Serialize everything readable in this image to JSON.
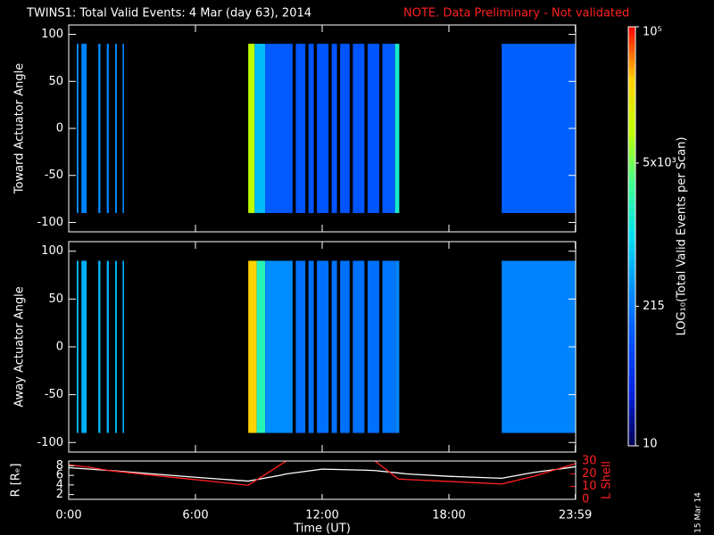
{
  "header": {
    "title": "TWINS1: Total Valid Events:  4 Mar (day  63), 2014",
    "note": "NOTE. Data Preliminary - Not validated"
  },
  "stamp": "15 Mar 14",
  "colorbar": {
    "label": "LOG₁₀(Total Valid Events per Scan)",
    "lim": [
      10,
      100000
    ],
    "log": true,
    "ticks": [
      10,
      215,
      {
        "value": 5000,
        "label": "5x10³"
      },
      {
        "value": 100000,
        "label": "10⁵"
      }
    ],
    "colormap": [
      "#000050",
      "#0020e0",
      "#0050ff",
      "#0090ff",
      "#00e0f0",
      "#40ff90",
      "#c0ff00",
      "#ffd000",
      "#ff0000"
    ]
  },
  "chart_data": [
    {
      "type": "heatmap",
      "ylabel": "Toward Actuator Angle",
      "xlim": [
        0,
        24
      ],
      "xticks": [
        0,
        6,
        12,
        18,
        23.983
      ],
      "ylim": [
        -110,
        110
      ],
      "yticks": [
        100,
        50,
        0,
        -50,
        -100
      ],
      "y_extent": [
        -90,
        90
      ],
      "x_start": [
        0.38,
        0.6,
        1.4,
        1.8,
        2.2,
        2.55,
        8.5,
        8.8,
        9.3,
        10.75,
        11.35,
        11.75,
        12.45,
        12.85,
        13.45,
        14.15,
        14.85,
        15.45,
        20.5
      ],
      "x_end": [
        0.46,
        0.85,
        1.5,
        1.9,
        2.28,
        2.62,
        8.8,
        9.3,
        10.6,
        11.2,
        11.6,
        12.3,
        12.7,
        13.3,
        14.0,
        14.7,
        15.45,
        15.65,
        24
      ],
      "values": [
        300,
        250,
        300,
        250,
        300,
        250,
        10000,
        600,
        120,
        110,
        110,
        110,
        110,
        110,
        110,
        110,
        120,
        1500,
        130
      ]
    },
    {
      "type": "heatmap",
      "ylabel": "Away Actuator Angle",
      "xlim": [
        0,
        24
      ],
      "xticks": [
        0,
        6,
        12,
        18,
        23.983
      ],
      "ylim": [
        -110,
        110
      ],
      "yticks": [
        100,
        50,
        0,
        -50,
        -100
      ],
      "y_extent": [
        -90,
        90
      ],
      "x_start": [
        0.38,
        0.6,
        1.4,
        1.8,
        2.2,
        2.55,
        8.5,
        8.9,
        9.3,
        10.75,
        11.35,
        11.75,
        12.45,
        12.85,
        13.45,
        14.15,
        14.85,
        15.45,
        20.5
      ],
      "x_end": [
        0.46,
        0.85,
        1.5,
        1.9,
        2.28,
        2.62,
        8.9,
        9.3,
        10.6,
        11.2,
        11.6,
        12.3,
        12.7,
        13.3,
        14.0,
        14.7,
        15.45,
        15.65,
        24
      ],
      "values": [
        600,
        500,
        600,
        500,
        600,
        500,
        30000,
        2000,
        300,
        180,
        180,
        180,
        180,
        180,
        180,
        180,
        200,
        250,
        250
      ]
    },
    {
      "type": "line",
      "xlabel": "Time (UT)",
      "ylabel": "R [Rₑ]",
      "y2label": "L Shell",
      "xlim": [
        0,
        24
      ],
      "xticks": [
        {
          "value": 0,
          "label": "0:00"
        },
        {
          "value": 6,
          "label": "6:00"
        },
        {
          "value": 12,
          "label": "12:00"
        },
        {
          "value": 18,
          "label": "18:00"
        },
        {
          "value": 23.983,
          "label": "23:59"
        }
      ],
      "ylim": [
        1,
        9
      ],
      "yticks": [
        2,
        4,
        6,
        8
      ],
      "y2lim": [
        0,
        30
      ],
      "y2ticks": [
        0,
        10,
        20,
        30
      ],
      "x": [
        0,
        1,
        2,
        4,
        6,
        8.5,
        10,
        10.3,
        12,
        14,
        14.5,
        15.6,
        16,
        18,
        20.5,
        22,
        24
      ],
      "series": [
        {
          "name": "R",
          "color": "#ffffff",
          "values": [
            7.6,
            7.3,
            7.0,
            6.3,
            5.6,
            4.8,
            6.0,
            6.3,
            7.3,
            7.1,
            7.0,
            6.5,
            6.3,
            5.8,
            5.4,
            6.6,
            7.8
          ]
        },
        {
          "name": "L Shell",
          "color": "#ff2020",
          "axis": "y2",
          "values": [
            27,
            25,
            22.3,
            18.8,
            15.4,
            11,
            26.8,
            30,
            null,
            null,
            30,
            16,
            15.5,
            14,
            12,
            18,
            28
          ]
        }
      ]
    }
  ]
}
